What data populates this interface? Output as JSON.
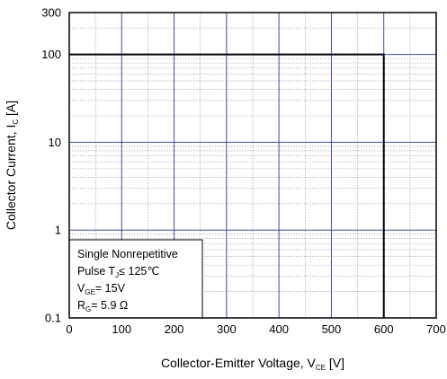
{
  "chart_data": {
    "type": "line",
    "title": "",
    "xlabel": {
      "main": "Collector-Emitter  Voltage, V",
      "sub": "CE",
      "unit": " [V]"
    },
    "ylabel": {
      "main": "Collector Current, I",
      "sub": "C",
      "unit": " [A]"
    },
    "x_scale": "linear",
    "y_scale": "log",
    "xlim": [
      0,
      700
    ],
    "ylim": [
      0.1,
      300
    ],
    "x_ticks": [
      0,
      100,
      200,
      300,
      400,
      500,
      600,
      700
    ],
    "x_tick_labels": [
      "0",
      "100",
      "200",
      "300",
      "400",
      "500",
      "600",
      "700"
    ],
    "y_ticks": [
      0.1,
      1,
      10,
      100,
      300
    ],
    "y_tick_labels": [
      "0.1",
      "1",
      "10",
      "100",
      "300"
    ],
    "grid": true,
    "series": [
      {
        "x": [
          0,
          600,
          600
        ],
        "y": [
          100,
          100,
          0.1
        ],
        "color": "#000000"
      }
    ],
    "annotation_box": {
      "placement": "bottom-left",
      "lines": [
        {
          "parts": [
            {
              "t": "Single Nonrepetitive"
            }
          ]
        },
        {
          "parts": [
            {
              "t": "Pulse T"
            },
            {
              "t": "J",
              "sub": true
            },
            {
              "t": "≤  125℃"
            }
          ]
        },
        {
          "parts": [
            {
              "t": "V"
            },
            {
              "t": "GE",
              "sub": true
            },
            {
              "t": "=  15V"
            }
          ]
        },
        {
          "parts": [
            {
              "t": "R"
            },
            {
              "t": "G",
              "sub": true
            },
            {
              "t": "= 5.9 Ω"
            }
          ]
        }
      ]
    },
    "colors": {
      "major_grid": "#3a4fa0",
      "minor_grid": "#8a8f9a",
      "frame": "#000000",
      "line": "#000000"
    }
  }
}
